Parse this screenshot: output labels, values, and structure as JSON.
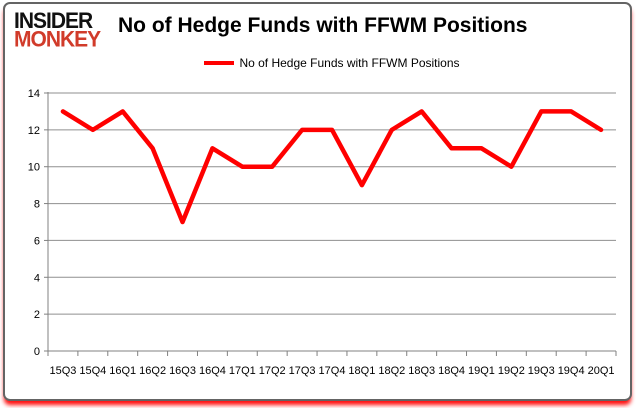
{
  "header": {
    "logo": {
      "line1": "INSIDER",
      "line2": "MONKEY",
      "line1_color": "#111111",
      "line2_color": "#d13b2a"
    },
    "title": "No of Hedge Funds with FFWM Positions"
  },
  "legend": {
    "label": "No of Hedge Funds with FFWM Positions",
    "swatch_color": "#ff0000"
  },
  "chart_data": {
    "type": "line",
    "title": "No of Hedge Funds with FFWM Positions",
    "categories": [
      "15Q3",
      "15Q4",
      "16Q1",
      "16Q2",
      "16Q3",
      "16Q4",
      "17Q1",
      "17Q2",
      "17Q3",
      "17Q4",
      "18Q1",
      "18Q2",
      "18Q3",
      "18Q4",
      "19Q1",
      "19Q2",
      "19Q3",
      "19Q4",
      "20Q1"
    ],
    "series": [
      {
        "name": "No of Hedge Funds with FFWM Positions",
        "color": "#ff0000",
        "values": [
          13,
          12,
          13,
          11,
          7,
          11,
          10,
          10,
          12,
          12,
          9,
          12,
          13,
          11,
          11,
          10,
          13,
          13,
          12
        ]
      }
    ],
    "xlabel": "",
    "ylabel": "",
    "ylim": [
      0,
      14
    ],
    "yticks": [
      0,
      2,
      4,
      6,
      8,
      10,
      12,
      14
    ],
    "grid": true,
    "legend_position": "top",
    "gridline_color": "#8f8f8f",
    "axis_color": "#808080"
  }
}
